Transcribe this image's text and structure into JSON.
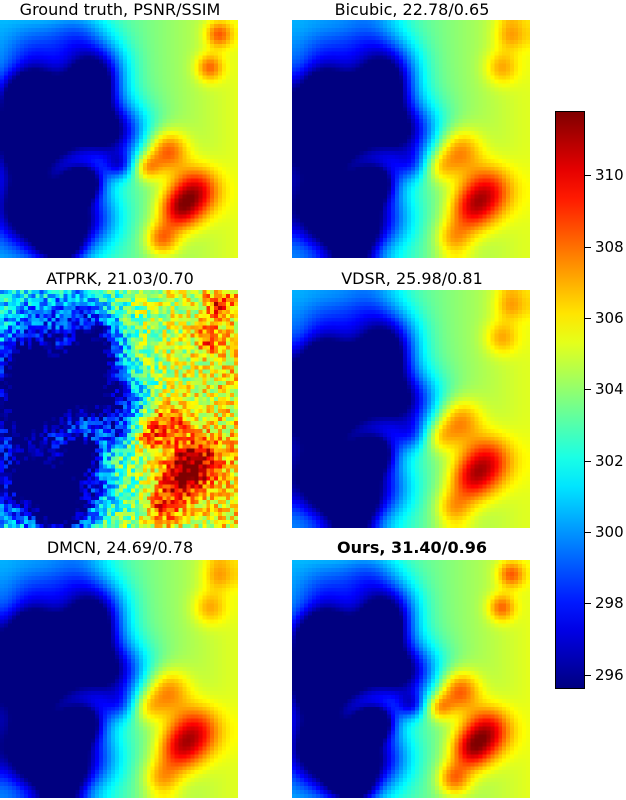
{
  "figure": {
    "panels": [
      {
        "title": "Ground truth, PSNR/SSIM",
        "bold": false,
        "style": "sharp"
      },
      {
        "title": "Bicubic, 22.78/0.65",
        "bold": false,
        "style": "smooth"
      },
      {
        "title": "ATPRK, 21.03/0.70",
        "bold": false,
        "style": "noisy"
      },
      {
        "title": "VDSR, 25.98/0.81",
        "bold": false,
        "style": "smooth"
      },
      {
        "title": "DMCN, 24.69/0.78",
        "bold": false,
        "style": "smooth"
      },
      {
        "title": "Ours, 31.40/0.96",
        "bold": true,
        "style": "sharp"
      }
    ],
    "colorbar": {
      "colormap": "jet",
      "min": 295.6,
      "max": 311.8,
      "ticks": [
        "296",
        "298",
        "300",
        "302",
        "304",
        "306",
        "308",
        "310"
      ]
    }
  }
}
